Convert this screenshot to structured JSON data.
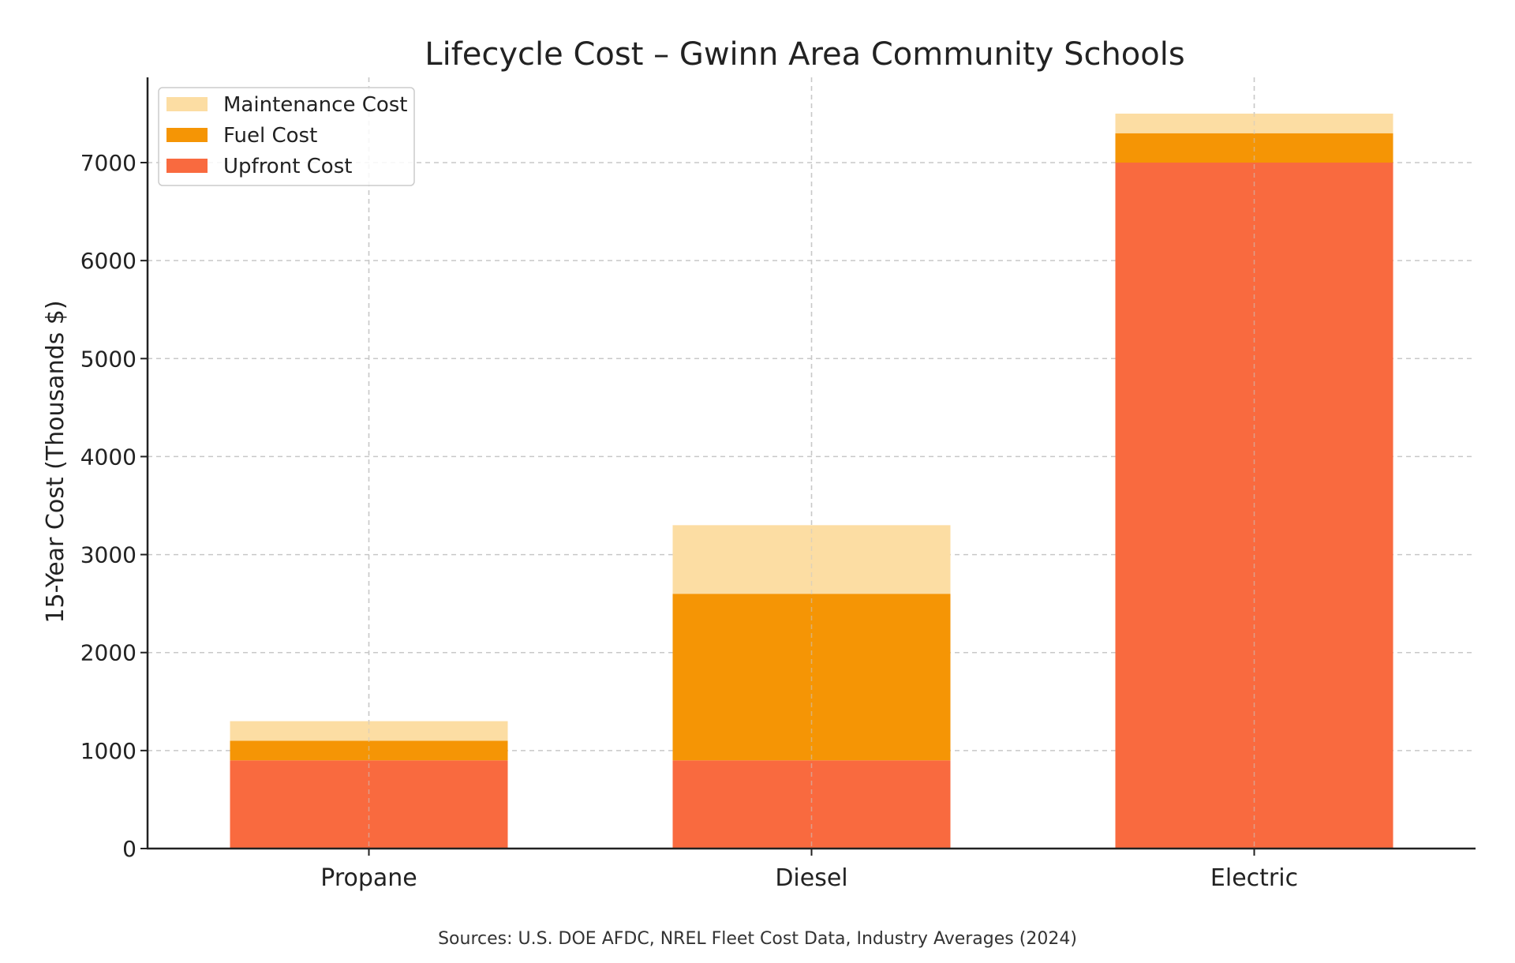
{
  "chart_data": {
    "type": "bar",
    "stacked": true,
    "title": "Lifecycle Cost – Gwinn Area Community Schools",
    "xlabel": "",
    "ylabel": "15-Year Cost (Thousands $)",
    "categories": [
      "Propane",
      "Diesel",
      "Electric"
    ],
    "series": [
      {
        "name": "Upfront Cost",
        "values": [
          900,
          900,
          7000
        ],
        "color": "#f96a3f"
      },
      {
        "name": "Fuel Cost",
        "values": [
          200,
          1700,
          300
        ],
        "color": "#f59505"
      },
      {
        "name": "Maintenance Cost",
        "values": [
          200,
          700,
          200
        ],
        "color": "#fcdda3"
      }
    ],
    "ylim": [
      0,
      7870
    ],
    "yticks": [
      "0",
      "1000",
      "2000",
      "3000",
      "4000",
      "5000",
      "6000",
      "7000"
    ],
    "ytick_values": [
      0,
      1000,
      2000,
      3000,
      4000,
      5000,
      6000,
      7000
    ],
    "grid": true,
    "legend_position": "top-left",
    "legend_order": [
      "Maintenance Cost",
      "Fuel Cost",
      "Upfront Cost"
    ],
    "source_note": "Sources: U.S. DOE AFDC, NREL Fleet Cost Data, Industry Averages (2024)"
  }
}
